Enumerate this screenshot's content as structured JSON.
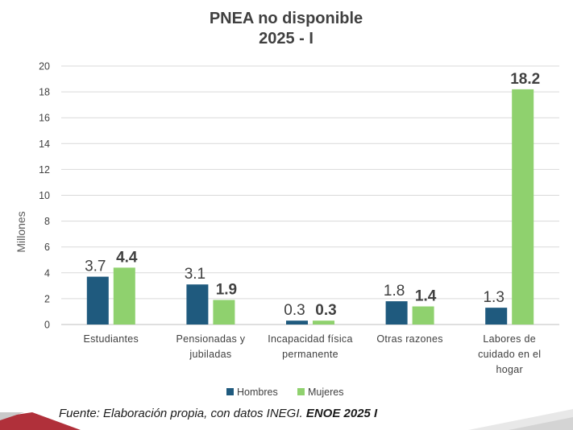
{
  "chart_data": {
    "type": "bar",
    "title": [
      "PNEA no disponible",
      "2025 - I"
    ],
    "ylabel": "Millones",
    "ylim": [
      0,
      20
    ],
    "yticks": [
      0,
      2,
      4,
      6,
      8,
      10,
      12,
      14,
      16,
      18,
      20
    ],
    "categories": [
      [
        "Estudiantes"
      ],
      [
        "Pensionadas y",
        "jubiladas"
      ],
      [
        "Incapacidad física",
        "permanente"
      ],
      [
        "Otras razones"
      ],
      [
        "Labores de",
        "cuidado en el",
        "hogar"
      ]
    ],
    "series": [
      {
        "name": "Hombres",
        "color": "#1f5a7e",
        "values": [
          3.7,
          3.1,
          0.3,
          1.8,
          1.3
        ],
        "labels": [
          "3.7",
          "3.1",
          "0.3",
          "1.8",
          "1.3"
        ]
      },
      {
        "name": "Mujeres",
        "color": "#8fd16e",
        "values": [
          4.4,
          1.9,
          0.3,
          1.4,
          18.2
        ],
        "labels": [
          "4.4",
          "1.9",
          "0.3",
          "1.4",
          "18.2"
        ]
      }
    ],
    "grid": true,
    "legend": "bottom"
  },
  "source": {
    "prefix": "Fuente: Elaboración propia, con datos INEGI. ",
    "bold": "ENOE 2025 I"
  }
}
